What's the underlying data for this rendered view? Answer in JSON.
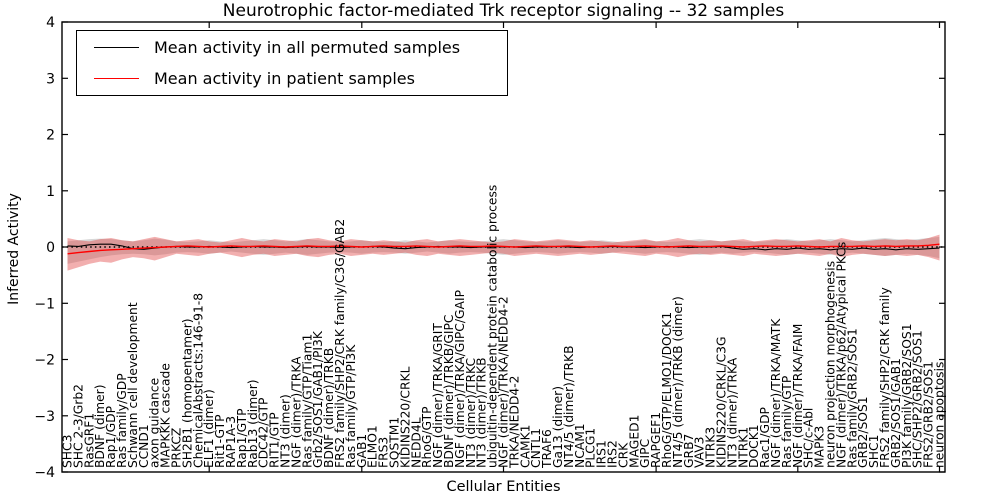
{
  "chart_data": {
    "type": "line",
    "title": "Neurotrophic factor-mediated Trk receptor signaling -- 32 samples",
    "xlabel": "Cellular Entities",
    "ylabel": "Inferred Activity",
    "ylim": [
      -4,
      4
    ],
    "yticks": [
      4,
      3,
      2,
      1,
      0,
      -1,
      -2,
      -3,
      -4
    ],
    "xtick_indices": [
      13,
      27,
      40,
      54,
      67,
      80
    ],
    "grid": false,
    "zero_line": "dotted",
    "legend_position": "upper left",
    "x_label_rotation": 90,
    "categories": [
      "SHC3",
      "SHC 2-3/Grb2",
      "RasGRF1",
      "BDNF (dimer)",
      "Rap1/GDP",
      "Ras family/GDP",
      "Schwann cell development",
      "CCND1",
      "axon guidance",
      "MAPKKK cascade",
      "PRKCZ",
      "SH2B1 (homopentamer)",
      "ChemicalAbstracts:146-91-8",
      "ELF1 (dimer)",
      "Rit1-GTP",
      "RAP1A-3",
      "Rap1/GTP",
      "Rab13 (dimer)",
      "CDC42/GTP",
      "RIT1/GTP",
      "NT3 (dimer)",
      "NGF (dimer)/TRKA",
      "Ras family/GTP/Tiam1",
      "Grb2/SOS1/GAB1/PI3K",
      "BDNF (dimer)/TRKB",
      "FRS2 family/SHP2/CRK family/C3G/GAB2",
      "Ras family/GTP/PI3K",
      "GAB1",
      "ELMO1",
      "FRS3",
      "SQSTM1",
      "KIDINS220/CRKL",
      "NEDD4L",
      "RhoG/GTP",
      "NGF (dimer)/TRKA/GRIT",
      "BDNF (dimer)/TRKB/GIPC",
      "NGF (dimer)/TRKA/GIPC/GAIP",
      "NT3 (dimer)/TRKC",
      "NT3 (dimer)/TRKB",
      "ubiquitin-dependent protein catabolic process",
      "NGF (dimer)/TRKA/NEDD4-2",
      "TRKA/NEDD4-2",
      "CAMK1",
      "CNTL1",
      "TRAF6",
      "Ga13 (dimer)",
      "NT4/5 (dimer)/TRKB",
      "NCAM1",
      "PLCG1",
      "IRS1",
      "IRS2",
      "CRK",
      "MAGED1",
      "GIPC",
      "RAPGEF1",
      "RhoG/GTP/ELMO1/DOCK1",
      "NT4/5 (dimer)/TRKB (dimer)",
      "GRB7",
      "VAV3",
      "NTRK3",
      "KIDINS220/CRKL/C3G",
      "NT3 (dimer)/TRKA",
      "NTRK1",
      "DOCK1",
      "Rac1/GDP",
      "NGF (dimer)/TRKA/MATK",
      "Ras family/GTP",
      "NGF (dimer)/TRKA/FAIM",
      "SHC/c-Abl",
      "MAPK3",
      "neuron projection morphogenesis",
      "NGF (dimer)/TRKA/p62/Atypical PKCs",
      "Ras family/GRB2/SOS1",
      "GRB2/SOS1",
      "SHC1",
      "FRS2 family/SHP2/CRK family",
      "GRB2/SOS1/GAB1",
      "PI3K family/GRB2/SOS1",
      "SHC/SHP2/GRB2/SOS1",
      "FRS2/GRB2/SOS1",
      "neuron apoptosis"
    ],
    "series": [
      {
        "name": "Mean activity in all permuted samples",
        "color": "#000000",
        "values": [
          0.02,
          0.01,
          0.04,
          0.05,
          0.05,
          0.02,
          -0.03,
          -0.04,
          -0.02,
          0.0,
          0.01,
          0.0,
          0.0,
          0.01,
          0.0,
          -0.01,
          0.0,
          0.01,
          0.0,
          0.0,
          -0.01,
          0.0,
          0.01,
          0.0,
          0.0,
          -0.01,
          0.0,
          0.0,
          0.01,
          0.0,
          -0.02,
          -0.03,
          -0.01,
          0.0,
          0.01,
          0.0,
          0.0,
          -0.01,
          0.0,
          0.01,
          0.0,
          0.0,
          -0.01,
          0.0,
          0.0,
          0.01,
          0.0,
          -0.01,
          0.0,
          0.0,
          0.01,
          0.0,
          0.0,
          -0.01,
          0.0,
          0.01,
          0.0,
          -0.01,
          0.0,
          0.0,
          0.01,
          -0.02,
          -0.04,
          -0.03,
          -0.05,
          -0.03,
          -0.04,
          -0.02,
          -0.04,
          -0.03,
          -0.05,
          -0.03,
          -0.04,
          -0.02,
          -0.04,
          -0.03,
          -0.05,
          -0.03,
          -0.04,
          -0.03,
          -0.02
        ]
      },
      {
        "name": "Mean activity in patient samples",
        "color": "#ff0000",
        "values": [
          -0.12,
          -0.1,
          -0.08,
          -0.06,
          -0.05,
          -0.04,
          -0.03,
          -0.02,
          -0.01,
          0.0,
          0.01,
          0.02,
          0.01,
          0.0,
          0.01,
          0.02,
          0.01,
          0.01,
          0.02,
          0.01,
          0.0,
          0.01,
          0.02,
          0.01,
          0.01,
          0.02,
          0.01,
          0.0,
          0.01,
          0.02,
          0.01,
          0.01,
          0.02,
          0.01,
          0.0,
          0.01,
          0.02,
          0.01,
          0.01,
          0.02,
          0.01,
          0.0,
          0.01,
          0.02,
          0.01,
          0.01,
          0.02,
          0.01,
          0.0,
          0.01,
          0.02,
          0.01,
          0.01,
          0.02,
          0.01,
          0.0,
          0.01,
          0.02,
          0.01,
          0.01,
          0.02,
          0.01,
          0.0,
          0.01,
          0.02,
          0.01,
          0.01,
          0.02,
          0.01,
          0.0,
          0.01,
          0.01,
          0.01,
          0.02,
          0.01,
          0.02,
          0.01,
          0.02,
          0.02,
          0.03,
          0.05
        ]
      }
    ],
    "bands": [
      {
        "name": "permuted samples range",
        "color": "#9e9e9e",
        "opacity": 0.4,
        "upper": [
          0.1,
          0.12,
          0.14,
          0.15,
          0.14,
          0.12,
          0.1,
          0.12,
          0.15,
          0.13,
          0.1,
          0.09,
          0.1,
          0.12,
          0.1,
          0.08,
          0.1,
          0.12,
          0.14,
          0.12,
          0.1,
          0.12,
          0.14,
          0.12,
          0.1,
          0.09,
          0.1,
          0.12,
          0.1,
          0.09,
          0.1,
          0.12,
          0.1,
          0.08,
          0.1,
          0.12,
          0.1,
          0.09,
          0.1,
          0.12,
          0.14,
          0.12,
          0.1,
          0.09,
          0.1,
          0.12,
          0.1,
          0.09,
          0.1,
          0.12,
          0.1,
          0.08,
          0.1,
          0.12,
          0.1,
          0.09,
          0.1,
          0.12,
          0.14,
          0.12,
          0.1,
          0.12,
          0.1,
          0.09,
          0.1,
          0.12,
          0.14,
          0.12,
          0.1,
          0.12,
          0.14,
          0.12,
          0.1,
          0.12,
          0.14,
          0.16,
          0.14,
          0.12,
          0.14,
          0.16,
          0.18
        ],
        "lower": [
          -0.3,
          -0.26,
          -0.22,
          -0.18,
          -0.15,
          -0.13,
          -0.12,
          -0.13,
          -0.15,
          -0.13,
          -0.1,
          -0.09,
          -0.1,
          -0.12,
          -0.1,
          -0.08,
          -0.1,
          -0.12,
          -0.14,
          -0.12,
          -0.1,
          -0.12,
          -0.14,
          -0.12,
          -0.1,
          -0.09,
          -0.1,
          -0.12,
          -0.1,
          -0.09,
          -0.1,
          -0.12,
          -0.1,
          -0.08,
          -0.1,
          -0.12,
          -0.1,
          -0.09,
          -0.1,
          -0.12,
          -0.14,
          -0.12,
          -0.1,
          -0.09,
          -0.1,
          -0.12,
          -0.1,
          -0.09,
          -0.1,
          -0.12,
          -0.1,
          -0.08,
          -0.1,
          -0.12,
          -0.1,
          -0.09,
          -0.1,
          -0.12,
          -0.14,
          -0.12,
          -0.1,
          -0.12,
          -0.1,
          -0.09,
          -0.1,
          -0.12,
          -0.14,
          -0.12,
          -0.1,
          -0.12,
          -0.14,
          -0.12,
          -0.1,
          -0.12,
          -0.14,
          -0.16,
          -0.14,
          -0.12,
          -0.14,
          -0.16,
          -0.2
        ]
      },
      {
        "name": "patient samples range",
        "color": "#e04040",
        "opacity": 0.42,
        "upper": [
          0.16,
          0.12,
          0.1,
          0.14,
          0.16,
          0.12,
          0.1,
          0.14,
          0.18,
          0.14,
          0.1,
          0.12,
          0.14,
          0.1,
          0.08,
          0.12,
          0.16,
          0.12,
          0.1,
          0.14,
          0.12,
          0.1,
          0.14,
          0.16,
          0.12,
          0.1,
          0.14,
          0.12,
          0.1,
          0.12,
          0.1,
          0.08,
          0.12,
          0.14,
          0.1,
          0.12,
          0.14,
          0.12,
          0.1,
          0.08,
          0.1,
          0.14,
          0.12,
          0.1,
          0.12,
          0.14,
          0.12,
          0.1,
          0.12,
          0.1,
          0.08,
          0.1,
          0.12,
          0.14,
          0.1,
          0.12,
          0.16,
          0.12,
          0.1,
          0.12,
          0.1,
          0.12,
          0.14,
          0.1,
          0.12,
          0.14,
          0.12,
          0.1,
          0.12,
          0.14,
          0.1,
          0.16,
          0.12,
          0.1,
          0.12,
          0.14,
          0.12,
          0.14,
          0.12,
          0.16,
          0.22
        ],
        "lower": [
          -0.42,
          -0.36,
          -0.3,
          -0.26,
          -0.28,
          -0.22,
          -0.18,
          -0.2,
          -0.24,
          -0.18,
          -0.12,
          -0.14,
          -0.16,
          -0.12,
          -0.1,
          -0.14,
          -0.18,
          -0.14,
          -0.12,
          -0.16,
          -0.14,
          -0.12,
          -0.16,
          -0.18,
          -0.14,
          -0.12,
          -0.16,
          -0.14,
          -0.12,
          -0.14,
          -0.12,
          -0.1,
          -0.14,
          -0.16,
          -0.12,
          -0.14,
          -0.16,
          -0.14,
          -0.12,
          -0.1,
          -0.12,
          -0.16,
          -0.14,
          -0.12,
          -0.14,
          -0.16,
          -0.14,
          -0.12,
          -0.14,
          -0.12,
          -0.1,
          -0.12,
          -0.14,
          -0.16,
          -0.12,
          -0.14,
          -0.18,
          -0.14,
          -0.12,
          -0.14,
          -0.12,
          -0.14,
          -0.16,
          -0.12,
          -0.14,
          -0.16,
          -0.14,
          -0.12,
          -0.14,
          -0.16,
          -0.12,
          -0.18,
          -0.14,
          -0.12,
          -0.14,
          -0.16,
          -0.14,
          -0.16,
          -0.14,
          -0.18,
          -0.24
        ]
      }
    ]
  }
}
